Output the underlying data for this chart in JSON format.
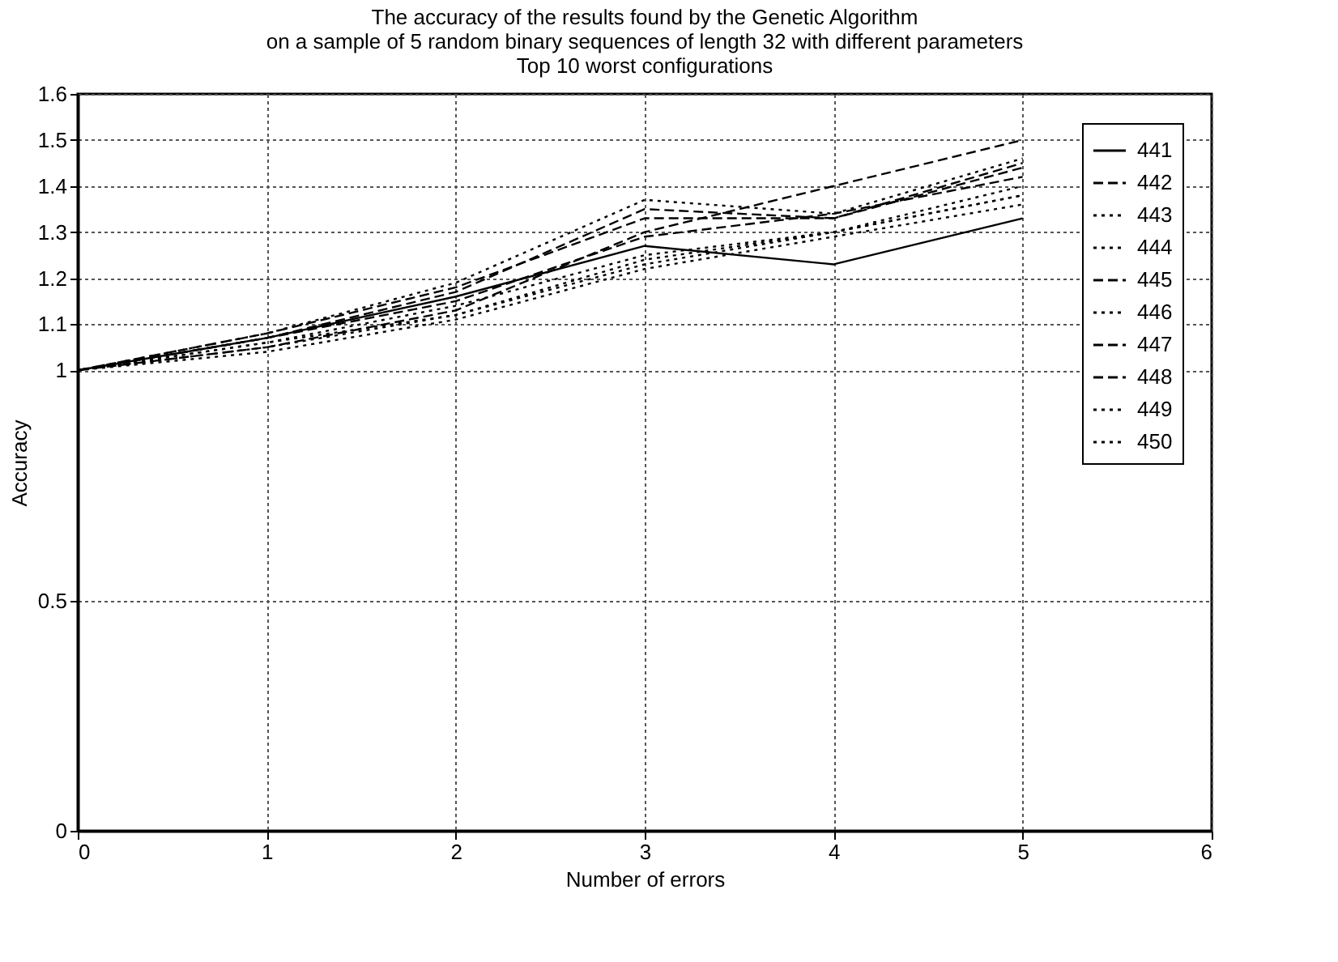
{
  "chart_data": {
    "type": "line",
    "title": "The accuracy of the results found by the Genetic Algorithm\non a sample of 5 random binary sequences of length 32 with different parameters\nTop 10 worst configurations",
    "xlabel": "Number of errors",
    "ylabel": "Accuracy",
    "x": [
      0,
      1,
      2,
      3,
      4,
      5
    ],
    "series": [
      {
        "name": "441",
        "color": "#000000",
        "line_style": "solid",
        "values": [
          1,
          1.07,
          1.16,
          1.27,
          1.23,
          1.33
        ]
      },
      {
        "name": "442",
        "color": "#000000",
        "line_style": "dashed",
        "values": [
          1,
          1.05,
          1.13,
          1.3,
          1.4,
          1.5
        ]
      },
      {
        "name": "443",
        "color": "#000000",
        "line_style": "dotted",
        "values": [
          1,
          1.08,
          1.19,
          1.37,
          1.34,
          1.46
        ]
      },
      {
        "name": "444",
        "color": "#000000",
        "line_style": "dotted",
        "values": [
          1,
          1.06,
          1.14,
          1.25,
          1.3,
          1.38
        ]
      },
      {
        "name": "445",
        "color": "#000000",
        "line_style": "dashed",
        "values": [
          1,
          1.07,
          1.17,
          1.35,
          1.33,
          1.45
        ]
      },
      {
        "name": "446",
        "color": "#000000",
        "line_style": "dotted",
        "values": [
          1,
          1.06,
          1.12,
          1.23,
          1.3,
          1.4
        ]
      },
      {
        "name": "447",
        "color": "#000000",
        "line_style": "dashed",
        "values": [
          1,
          1.07,
          1.15,
          1.29,
          1.34,
          1.42
        ]
      },
      {
        "name": "448",
        "color": "#000000",
        "line_style": "dashed",
        "values": [
          1,
          1.08,
          1.18,
          1.33,
          1.33,
          1.44
        ]
      },
      {
        "name": "449",
        "color": "#000000",
        "line_style": "dotted",
        "values": [
          1,
          1.05,
          1.12,
          1.24,
          1.3,
          1.38
        ]
      },
      {
        "name": "450",
        "color": "#000000",
        "line_style": "dotted",
        "values": [
          1,
          1.04,
          1.11,
          1.22,
          1.29,
          1.36
        ]
      }
    ],
    "xlim": [
      0,
      6
    ],
    "xticks": [
      0,
      1,
      2,
      3,
      4,
      5,
      6
    ],
    "ylim": [
      0,
      1.6
    ],
    "yticks": [
      0,
      0.5,
      1,
      1.1,
      1.2,
      1.3,
      1.4,
      1.5,
      1.6
    ],
    "grid": true,
    "legend": "top right"
  }
}
